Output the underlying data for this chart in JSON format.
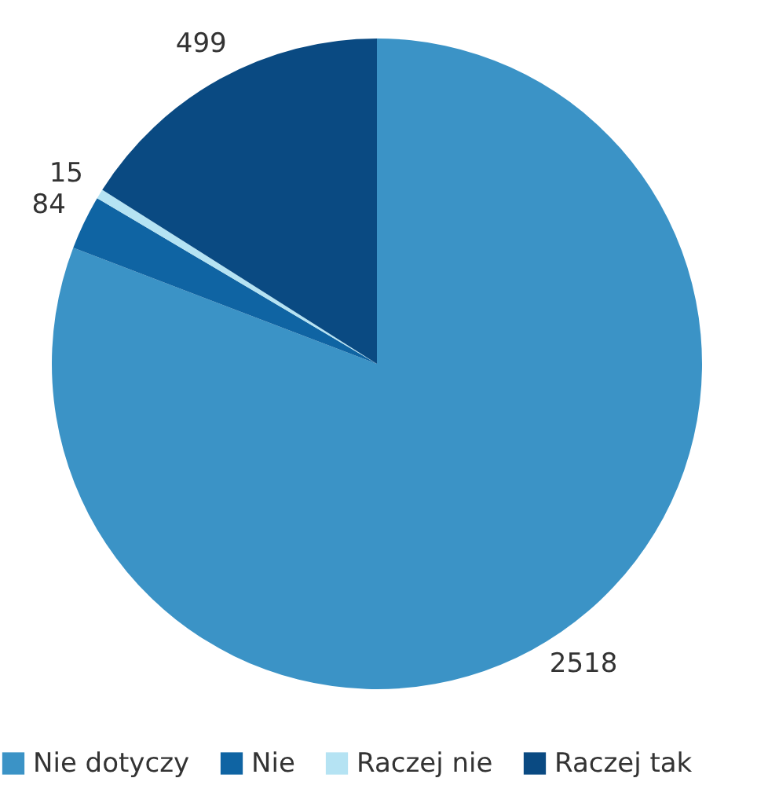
{
  "chart_data": {
    "type": "pie",
    "categories": [
      "Nie dotyczy",
      "Nie",
      "Raczej nie",
      "Raczej tak"
    ],
    "values": [
      2518,
      84,
      15,
      499
    ],
    "colors": [
      "#3b93c6",
      "#0f64a3",
      "#b5e3f3",
      "#0a4a82"
    ],
    "data_labels": true,
    "legend": "bottom"
  }
}
